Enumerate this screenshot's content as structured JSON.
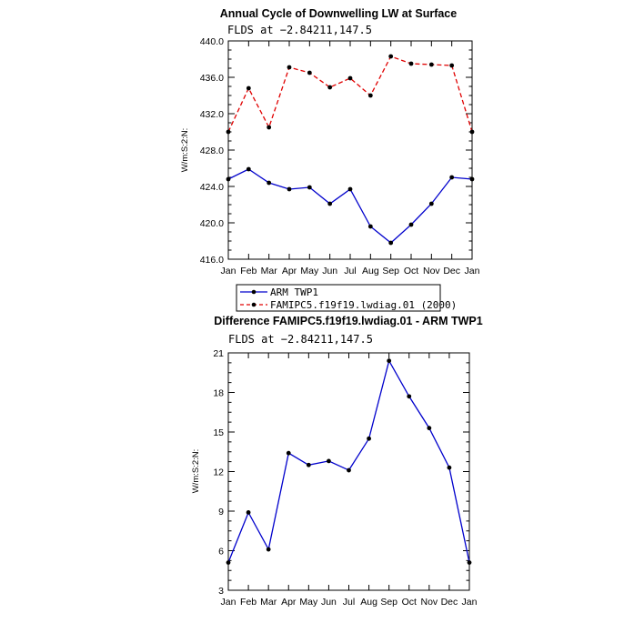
{
  "chart_data": [
    {
      "type": "line",
      "title": "Annual Cycle of Downwelling LW at Surface",
      "subtitle": "FLDS at −2.84211,147.5",
      "ylabel": "W/m:S:2:N:",
      "ylim": [
        416.0,
        440.0
      ],
      "yticks": [
        "416.0",
        "420.0",
        "424.0",
        "428.0",
        "432.0",
        "436.0",
        "440.0"
      ],
      "categories": [
        "Jan",
        "Feb",
        "Mar",
        "Apr",
        "May",
        "Jun",
        "Jul",
        "Aug",
        "Sep",
        "Oct",
        "Nov",
        "Dec",
        "Jan"
      ],
      "series": [
        {
          "name": "ARM TWP1",
          "color": "#0000cc",
          "dash": "solid",
          "values": [
            424.8,
            425.9,
            424.4,
            423.7,
            423.9,
            422.1,
            423.7,
            419.6,
            417.8,
            419.8,
            422.1,
            425.0,
            424.8
          ]
        },
        {
          "name": "FAMIPC5.f19f19.lwdiag.01 (2000)",
          "color": "#e00000",
          "dash": "dashed",
          "values": [
            430.0,
            434.8,
            430.5,
            437.1,
            436.5,
            434.9,
            435.9,
            434.0,
            438.3,
            437.5,
            437.4,
            437.3,
            430.0
          ]
        }
      ],
      "legend": "bottom-left"
    },
    {
      "type": "line",
      "title": "Difference FAMIPC5.f19f19.lwdiag.01 - ARM TWP1",
      "subtitle": "FLDS at −2.84211,147.5",
      "ylabel": "W/m:S:2:N:",
      "ylim": [
        3,
        21
      ],
      "yticks": [
        "3",
        "6",
        "9",
        "12",
        "15",
        "18",
        "21"
      ],
      "categories": [
        "Jan",
        "Feb",
        "Mar",
        "Apr",
        "May",
        "Jun",
        "Jul",
        "Aug",
        "Sep",
        "Oct",
        "Nov",
        "Dec",
        "Jan"
      ],
      "series": [
        {
          "color": "#0000cc",
          "dash": "solid",
          "values": [
            5.1,
            8.9,
            6.1,
            13.4,
            12.5,
            12.8,
            12.1,
            14.5,
            20.4,
            17.7,
            15.3,
            12.3,
            5.1
          ]
        }
      ]
    }
  ]
}
